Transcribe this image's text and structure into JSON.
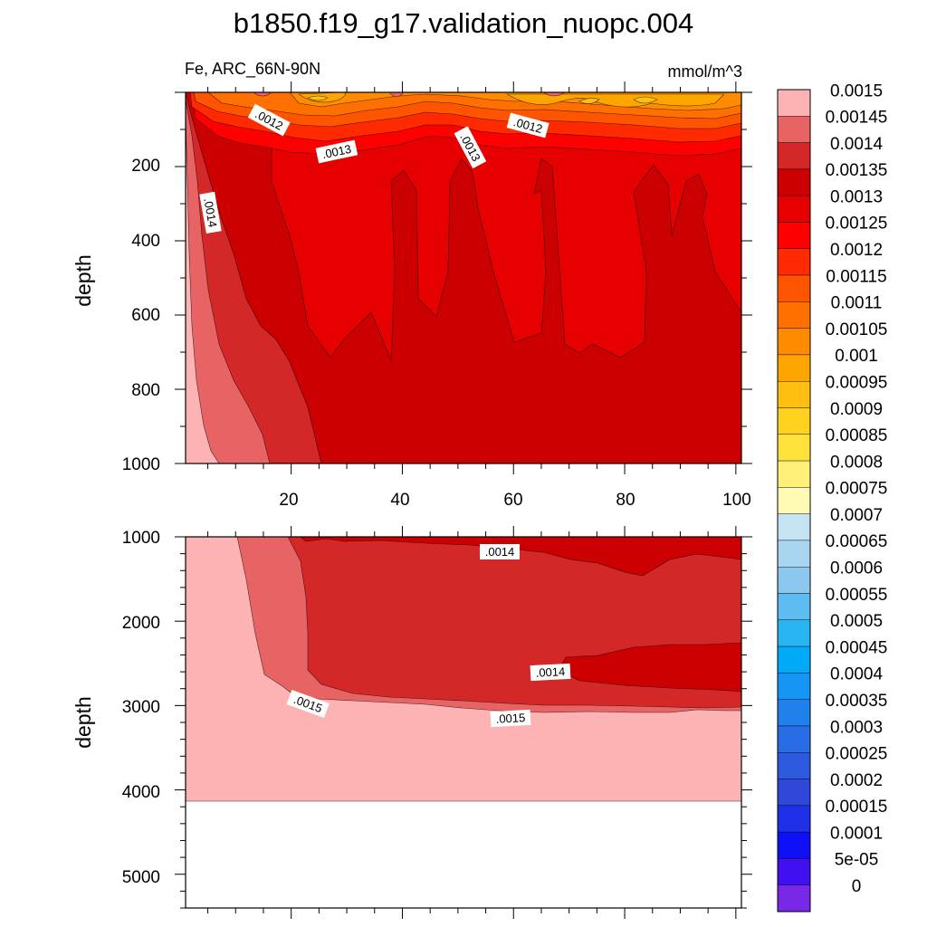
{
  "chart_data": [
    {
      "type": "contour",
      "title": "b1850.f19_g17.validation_nuopc.004",
      "subtitle_left": "Fe, ARC_66N-90N",
      "subtitle_right": "mmol/m^3",
      "ylabel": "depth",
      "xlim": [
        1,
        101
      ],
      "ylim": [
        1000,
        0
      ],
      "x_ticks": [
        "20",
        "40",
        "60",
        "80",
        "100"
      ],
      "y_ticks": [
        "200",
        "400",
        "600",
        "800",
        "1000"
      ],
      "contour_labels": [
        ".0012",
        ".0013",
        ".0013",
        ".0012",
        ".0014"
      ]
    },
    {
      "type": "contour",
      "ylabel": "depth",
      "xlim": [
        1,
        101
      ],
      "ylim": [
        5400,
        1000
      ],
      "y_ticks": [
        "1000",
        "2000",
        "3000",
        "4000",
        "5000"
      ],
      "contour_labels": [
        ".0014",
        ".0014",
        ".0015",
        ".0015"
      ]
    }
  ],
  "colorbar": {
    "levels": [
      "0.0015",
      "0.00145",
      "0.0014",
      "0.00135",
      "0.0013",
      "0.00125",
      "0.0012",
      "0.00115",
      "0.0011",
      "0.00105",
      "0.001",
      "0.00095",
      "0.0009",
      "0.00085",
      "0.0008",
      "0.00075",
      "0.0007",
      "0.00065",
      "0.0006",
      "0.00055",
      "0.0005",
      "0.00045",
      "0.0004",
      "0.00035",
      "0.0003",
      "0.00025",
      "0.0002",
      "0.00015",
      "0.0001",
      "5e-05",
      "0"
    ],
    "colors": [
      "#fdb3b3",
      "#e86464",
      "#d42828",
      "#cc0000",
      "#e60000",
      "#ff0000",
      "#ff2a00",
      "#ff5500",
      "#ff7000",
      "#ff8c00",
      "#ffa500",
      "#ffbe10",
      "#ffd21e",
      "#ffe13c",
      "#fff07a",
      "#fffab4",
      "#c4e4f4",
      "#a8d6f0",
      "#8cc8ee",
      "#5ebcf0",
      "#28b4f0",
      "#00aaf8",
      "#1696f4",
      "#2080ec",
      "#286ce6",
      "#2e5ae0",
      "#3048da",
      "#2030e8",
      "#1010f8",
      "#4010f0",
      "#7a28e8"
    ]
  }
}
